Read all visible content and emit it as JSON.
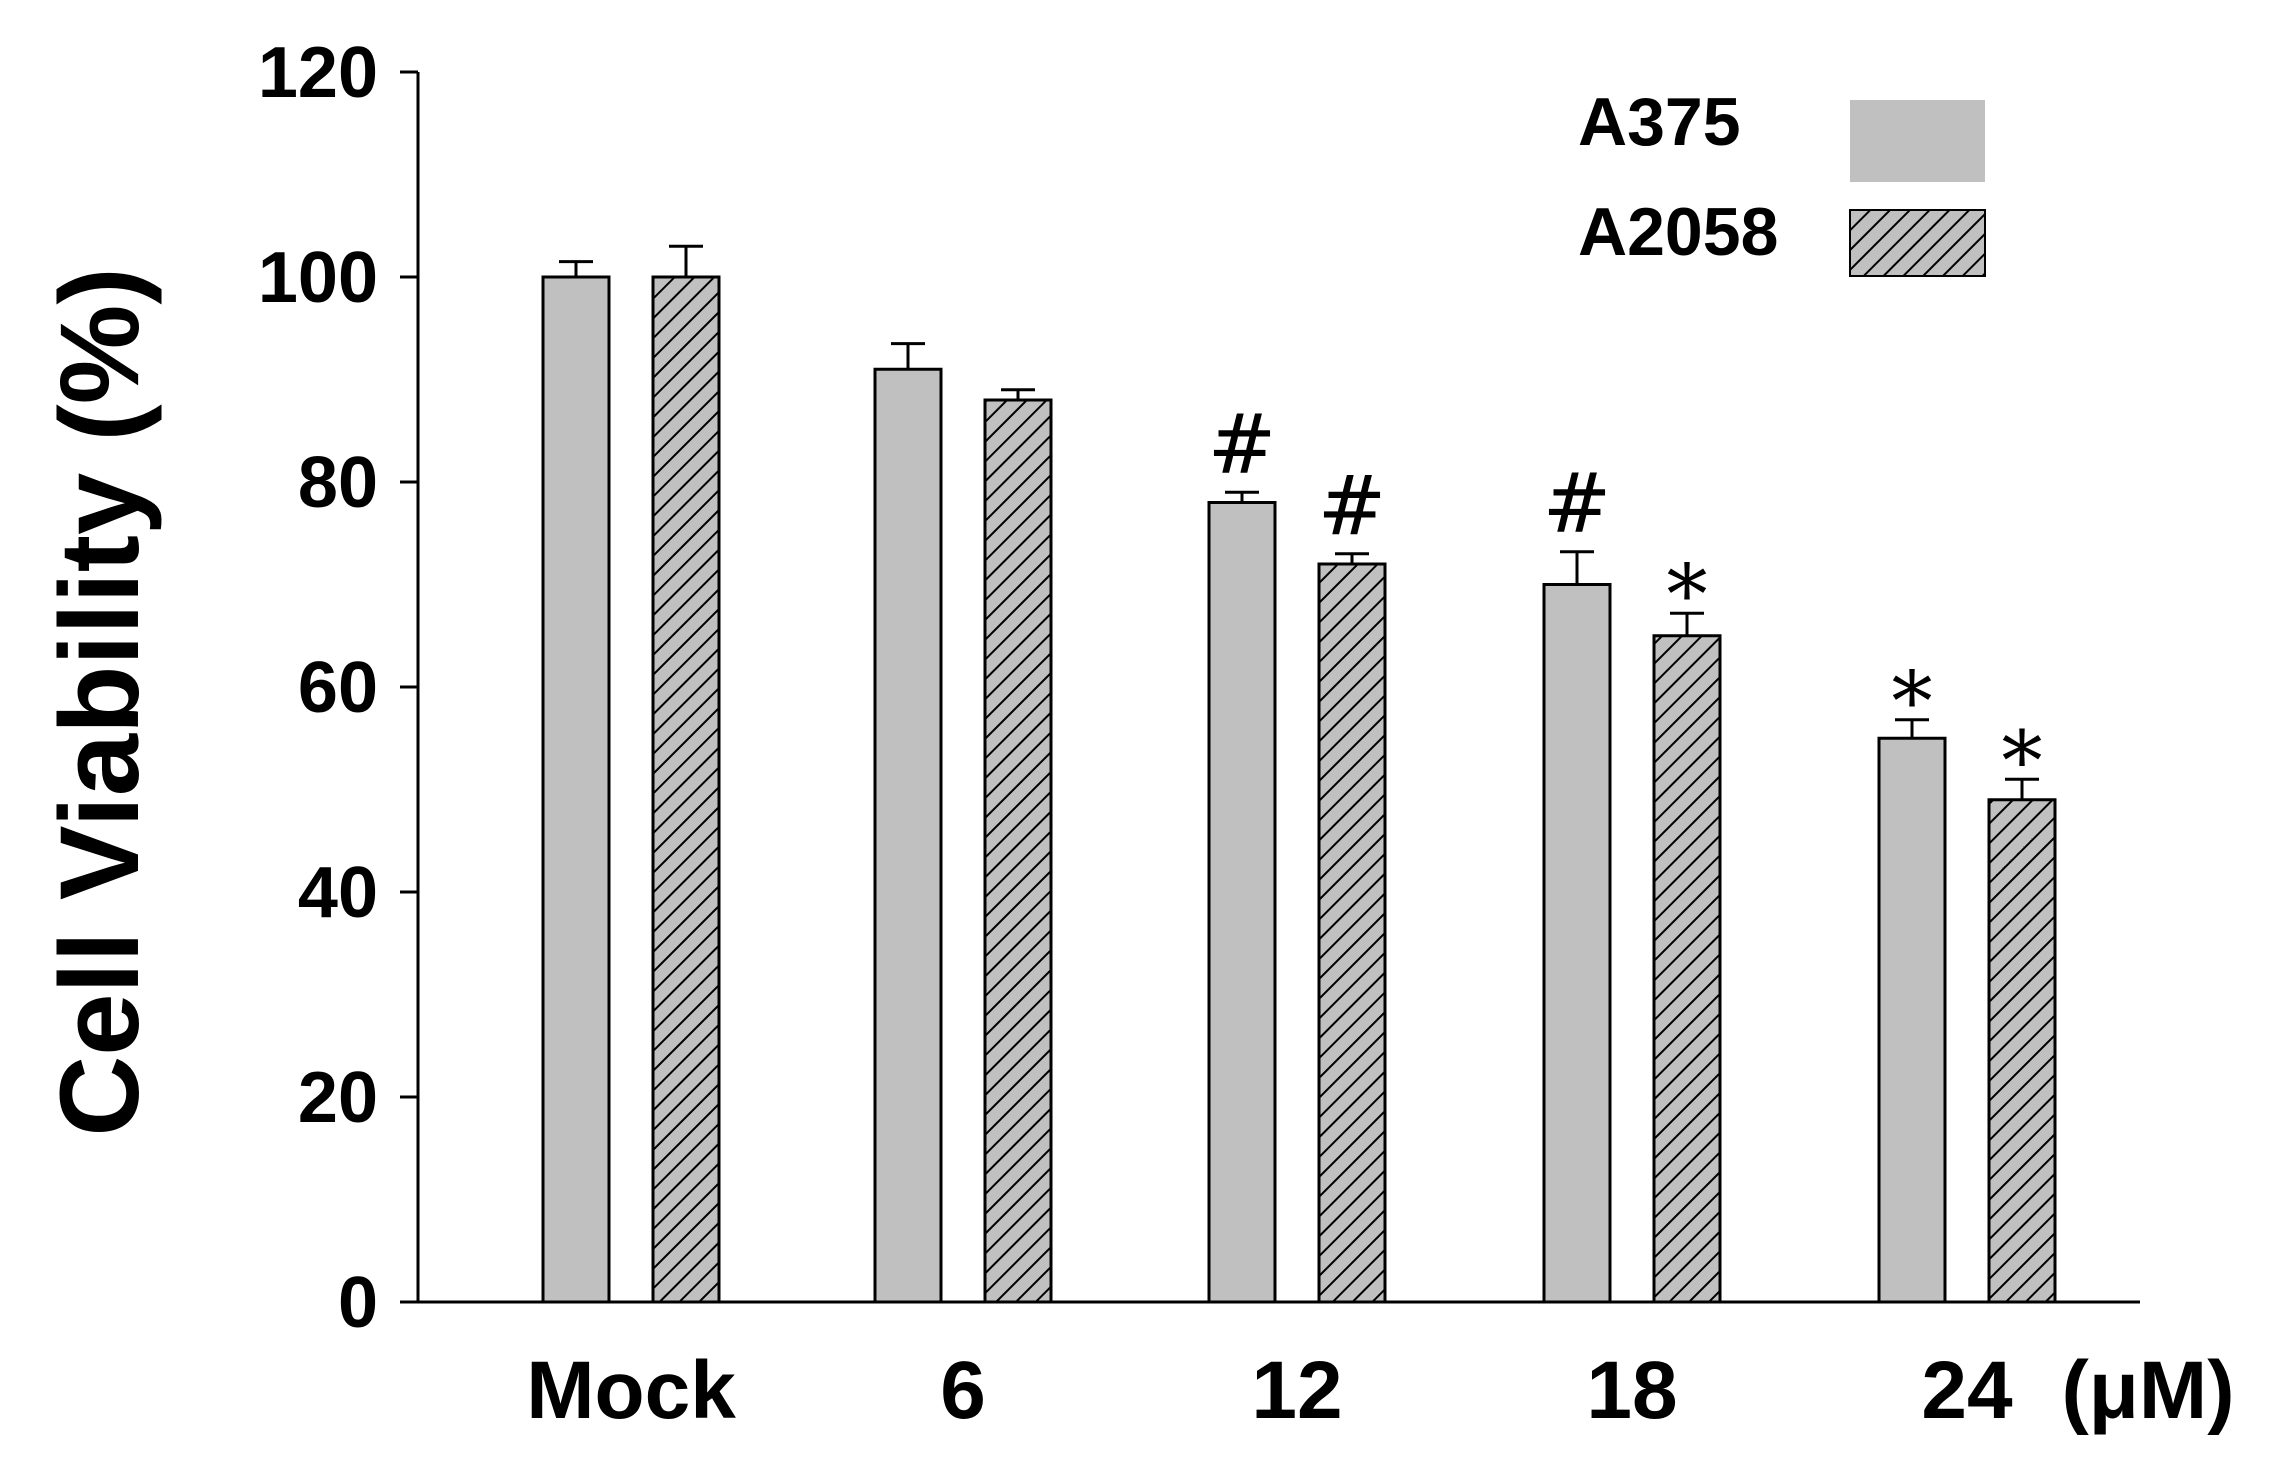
{
  "chart_data": {
    "type": "bar",
    "title": "",
    "xlabel": "",
    "ylabel": "Cell Viability (%)",
    "x_unit": "(μM)",
    "ylim": [
      0,
      120
    ],
    "yticks": [
      0,
      20,
      40,
      60,
      80,
      100,
      120
    ],
    "categories": [
      "Mock",
      "6",
      "12",
      "18",
      "24"
    ],
    "legend_position": "top-right",
    "grid": false,
    "series": [
      {
        "name": "A375",
        "fill": "#c0c0c0",
        "pattern": "solid",
        "values": [
          100,
          91,
          78,
          70,
          55
        ],
        "errors": [
          1.5,
          2.5,
          1.0,
          3.2,
          1.8
        ],
        "annotations": [
          "",
          "",
          "#",
          "#",
          "*"
        ]
      },
      {
        "name": "A2058",
        "fill": "#c0c0c0",
        "pattern": "diagonal-hatch",
        "values": [
          100,
          88,
          72,
          65,
          49
        ],
        "errors": [
          3.0,
          1.0,
          1.0,
          2.2,
          2.0
        ],
        "annotations": [
          "",
          "",
          "#",
          "*",
          "*"
        ]
      }
    ]
  }
}
